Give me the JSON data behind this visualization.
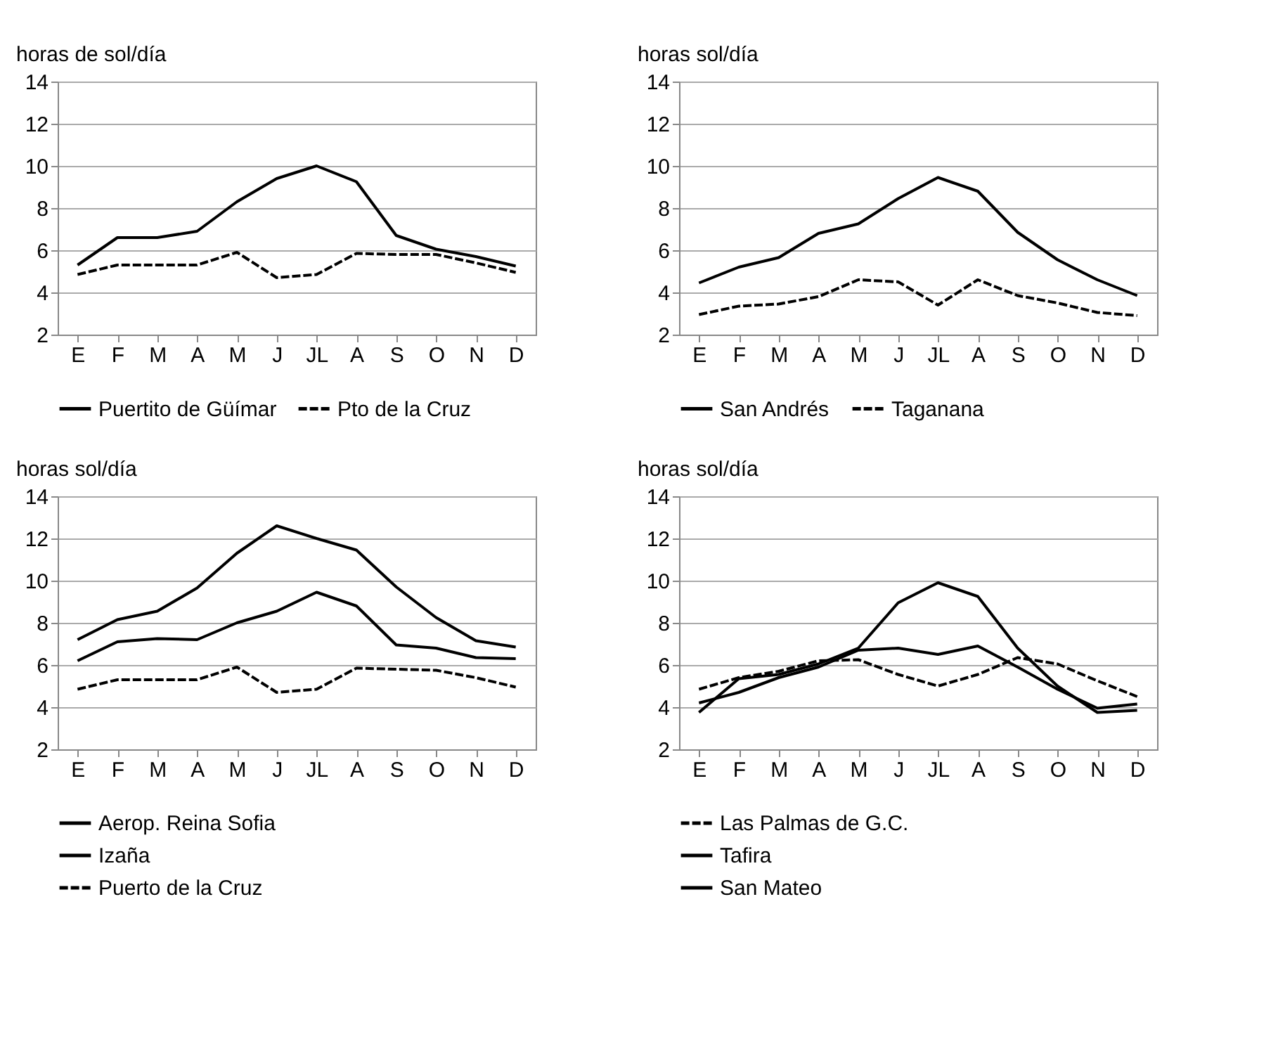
{
  "chart_data": [
    {
      "type": "line",
      "ylabel": "horas de sol/día",
      "categories": [
        "E",
        "F",
        "M",
        "A",
        "M",
        "J",
        "JL",
        "A",
        "S",
        "O",
        "N",
        "D"
      ],
      "ylim": [
        2,
        14
      ],
      "yticks": [
        2,
        4,
        6,
        8,
        10,
        12,
        14
      ],
      "grid": "y",
      "legend": "bottom",
      "series": [
        {
          "name": "Puertito de Güímar",
          "color": "#000000",
          "line_style": "solid",
          "values": [
            5.3,
            6.6,
            6.6,
            6.9,
            8.3,
            9.4,
            10.0,
            9.25,
            6.7,
            6.05,
            5.7,
            5.25
          ]
        },
        {
          "name": "Pto de la Cruz",
          "color": "#000000",
          "line_style": "dashed",
          "values": [
            4.85,
            5.3,
            5.3,
            5.3,
            5.9,
            4.7,
            4.85,
            5.85,
            5.8,
            5.8,
            5.4,
            4.95
          ]
        }
      ]
    },
    {
      "type": "line",
      "ylabel": "horas sol/día",
      "categories": [
        "E",
        "F",
        "M",
        "A",
        "M",
        "J",
        "JL",
        "A",
        "S",
        "O",
        "N",
        "D"
      ],
      "ylim": [
        2,
        14
      ],
      "yticks": [
        2,
        4,
        6,
        8,
        10,
        12,
        14
      ],
      "grid": "y",
      "legend": "bottom",
      "series": [
        {
          "name": "San Andrés",
          "color": "#000000",
          "line_style": "solid",
          "values": [
            4.45,
            5.2,
            5.65,
            6.8,
            7.25,
            8.45,
            9.45,
            8.8,
            6.85,
            5.55,
            4.6,
            3.85
          ]
        },
        {
          "name": "Taganana",
          "color": "#000000",
          "line_style": "dashed",
          "values": [
            2.95,
            3.35,
            3.45,
            3.8,
            4.6,
            4.5,
            3.4,
            4.6,
            3.85,
            3.5,
            3.05,
            2.9
          ]
        }
      ]
    },
    {
      "type": "line",
      "ylabel": "horas sol/día",
      "categories": [
        "E",
        "F",
        "M",
        "A",
        "M",
        "J",
        "JL",
        "A",
        "S",
        "O",
        "N",
        "D"
      ],
      "ylim": [
        2,
        14
      ],
      "yticks": [
        2,
        4,
        6,
        8,
        10,
        12,
        14
      ],
      "grid": "y",
      "legend": "bottom",
      "series": [
        {
          "name": "Aerop. Reina Sofia",
          "color": "#000000",
          "line_style": "solid",
          "values": [
            6.2,
            7.1,
            7.25,
            7.2,
            8.0,
            8.55,
            9.45,
            8.8,
            6.95,
            6.8,
            6.35,
            6.3
          ]
        },
        {
          "name": "Izaña",
          "color": "#000000",
          "line_style": "solid",
          "values": [
            7.2,
            8.15,
            8.55,
            9.65,
            11.3,
            12.6,
            12.0,
            11.45,
            9.7,
            8.25,
            7.15,
            6.85
          ]
        },
        {
          "name": "Puerto de la Cruz",
          "color": "#000000",
          "line_style": "dashed",
          "values": [
            4.85,
            5.3,
            5.3,
            5.3,
            5.9,
            4.7,
            4.85,
            5.85,
            5.8,
            5.75,
            5.4,
            4.95
          ]
        }
      ]
    },
    {
      "type": "line",
      "ylabel": "horas sol/día",
      "categories": [
        "E",
        "F",
        "M",
        "A",
        "M",
        "J",
        "JL",
        "A",
        "S",
        "O",
        "N",
        "D"
      ],
      "ylim": [
        2,
        14
      ],
      "yticks": [
        2,
        4,
        6,
        8,
        10,
        12,
        14
      ],
      "grid": "y",
      "legend": "bottom",
      "series": [
        {
          "name": "Las Palmas de G.C.",
          "color": "#000000",
          "line_style": "dashed",
          "values": [
            4.85,
            5.4,
            5.7,
            6.2,
            6.25,
            5.55,
            5.0,
            5.55,
            6.35,
            6.05,
            5.25,
            4.5
          ]
        },
        {
          "name": "Tafira",
          "color": "#000000",
          "line_style": "solid",
          "values": [
            4.2,
            4.7,
            5.4,
            5.9,
            6.7,
            6.8,
            6.5,
            6.9,
            5.9,
            4.85,
            3.95,
            4.15
          ]
        },
        {
          "name": "San Mateo",
          "color": "#000000",
          "line_style": "solid",
          "values": [
            3.75,
            5.35,
            5.55,
            6.05,
            6.8,
            8.95,
            9.9,
            9.25,
            6.8,
            5.0,
            3.75,
            3.85
          ]
        }
      ]
    }
  ]
}
